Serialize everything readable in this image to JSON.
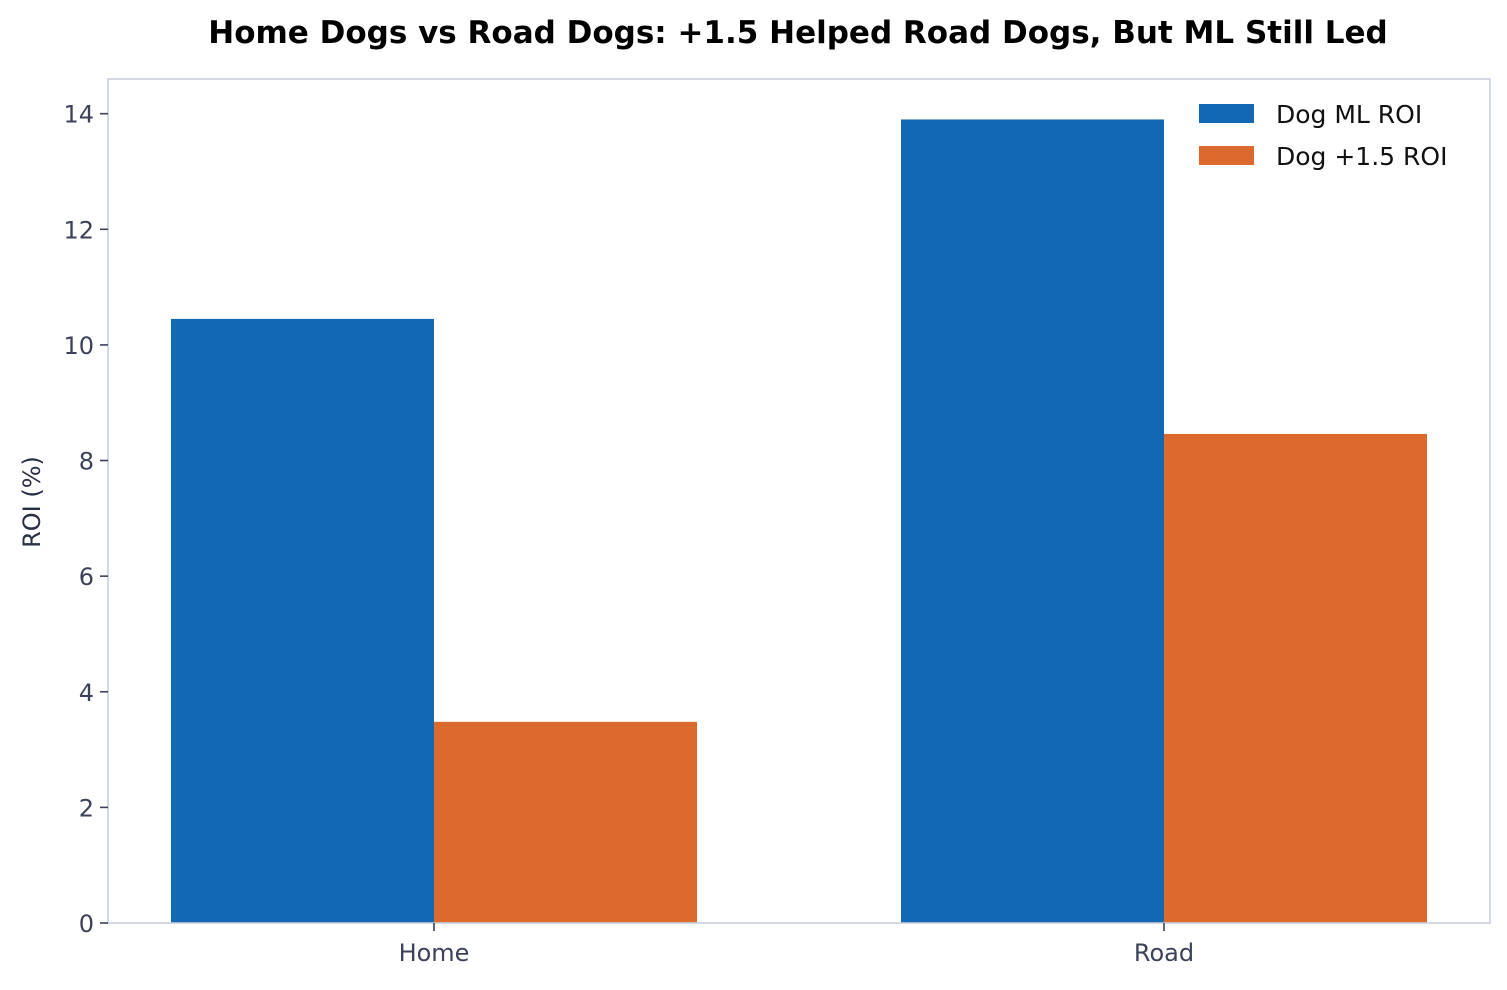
{
  "chart_data": {
    "type": "bar",
    "title": "Home Dogs vs Road Dogs: +1.5 Helped Road Dogs, But ML Still Led",
    "xlabel": "",
    "ylabel": "ROI (%)",
    "categories": [
      "Home",
      "Road"
    ],
    "series": [
      {
        "name": "Dog ML ROI",
        "values": [
          10.45,
          13.9
        ],
        "color": "#1368b3"
      },
      {
        "name": "Dog +1.5 ROI",
        "values": [
          3.48,
          8.46
        ],
        "color": "#dc6a2f"
      }
    ],
    "ylim": [
      0,
      14.6
    ],
    "yticks": [
      0,
      2,
      4,
      6,
      8,
      10,
      12,
      14
    ],
    "grid": false,
    "legend_position": "top-right",
    "frame_color": "#c9cfdc",
    "tick_color": "#3b4259"
  }
}
